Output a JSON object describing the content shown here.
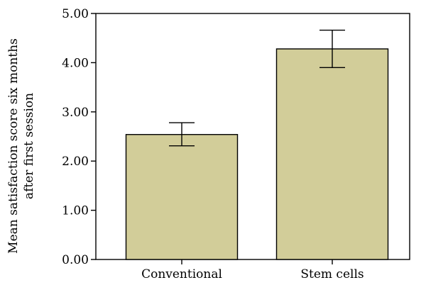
{
  "chart_data": {
    "type": "bar",
    "categories": [
      "Conventional",
      "Stem cells"
    ],
    "values": [
      2.54,
      4.28
    ],
    "error_low": [
      2.31,
      3.9
    ],
    "error_high": [
      2.78,
      4.66
    ],
    "ylabel_lines": [
      "Mean satisfaction score six months",
      "after first session"
    ],
    "xlabel": "",
    "ylim": [
      0,
      5
    ],
    "yticks": [
      "0.00",
      "1.00",
      "2.00",
      "3.00",
      "4.00",
      "5.00"
    ],
    "ytick_values": [
      0,
      1,
      2,
      3,
      4,
      5
    ],
    "bar_color": "#d2cd99",
    "grid": false
  }
}
